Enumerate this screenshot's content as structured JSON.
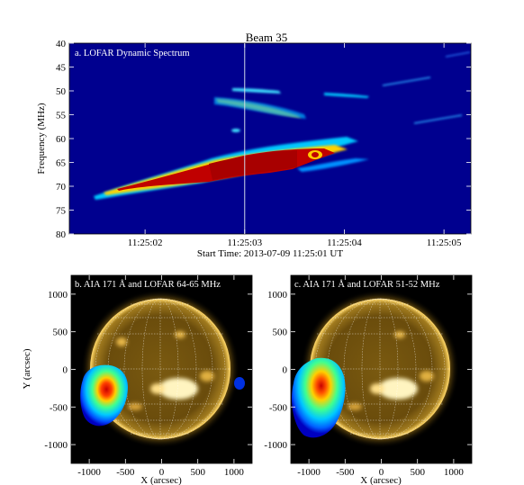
{
  "figure": {
    "title": "Beam 35"
  },
  "chart_data": [
    {
      "id": "a",
      "type": "heatmap",
      "panel_label": "a. LOFAR Dynamic Spectrum",
      "ylabel": "Frequency (MHz)",
      "xlabel": "Start Time: 2013-07-09 11:25:01 UT",
      "y_ticks": [
        "40",
        "45",
        "50",
        "55",
        "60",
        "65",
        "70",
        "75",
        "80"
      ],
      "y_tick_values": [
        40,
        45,
        50,
        55,
        60,
        65,
        70,
        75,
        80
      ],
      "ylim": [
        80,
        40
      ],
      "x_ticks": [
        "11:25:02",
        "11:25:03",
        "11:25:04",
        "11:25:05"
      ],
      "x_tick_values": [
        1.0,
        2.0,
        3.0,
        4.0
      ],
      "xlim": [
        0.24,
        4.27
      ],
      "x_units": "seconds after 11:25:01 UT",
      "marker_line_x": 2.0,
      "marker_line_color": "#cfd8e8",
      "background_color": "#00008f",
      "colormap": "jet",
      "features": [
        {
          "name": "main-burst",
          "description": "intense drifting emission",
          "x_range": [
            0.45,
            3.05
          ],
          "freq_range": [
            72,
            60
          ],
          "peak_color": "#b00000"
        },
        {
          "name": "upper-burst-1",
          "x_range": [
            1.8,
            2.45
          ],
          "freq_range": [
            53,
            49
          ]
        },
        {
          "name": "upper-burst-2",
          "x_range": [
            2.95,
            3.35
          ],
          "freq_range": [
            51,
            50
          ]
        },
        {
          "name": "faint-streak-1",
          "x_range": [
            3.45,
            3.95
          ],
          "freq_range": [
            49,
            48
          ]
        },
        {
          "name": "faint-streak-2",
          "x_range": [
            3.9,
            4.25
          ],
          "freq_range": [
            56,
            54
          ]
        },
        {
          "name": "faint-streak-3",
          "x_range": [
            4.05,
            4.27
          ],
          "freq_range": [
            44,
            42
          ]
        }
      ]
    },
    {
      "id": "b",
      "type": "heatmap",
      "panel_label": "b. AIA 171 Å and LOFAR 64-65 MHz",
      "xlabel": "X (arcsec)",
      "ylabel": "Y (arcsec)",
      "x_ticks": [
        "-1000",
        "-500",
        "0",
        "500",
        "1000"
      ],
      "x_tick_values": [
        -1000,
        -500,
        0,
        500,
        1000
      ],
      "y_ticks": [
        "-1000",
        "-500",
        "0",
        "500",
        "1000"
      ],
      "y_tick_values": [
        -1000,
        -500,
        0,
        500,
        1000
      ],
      "xlim": [
        -1250,
        1250
      ],
      "ylim": [
        -1250,
        1250
      ],
      "solar_radius_arcsec": 945,
      "grid": true,
      "radio_source": {
        "center": [
          -760,
          -330
        ],
        "extent": [
          [
            -1060,
            -720
          ],
          [
            -470,
            -40
          ]
        ]
      },
      "secondary_source": {
        "center": [
          1110,
          -230
        ]
      }
    },
    {
      "id": "c",
      "type": "heatmap",
      "panel_label": "c. AIA 171 Å and LOFAR 51-52 MHz",
      "xlabel": "X (arcsec)",
      "ylabel": "",
      "x_ticks": [
        "-1000",
        "-500",
        "0",
        "500",
        "1000"
      ],
      "x_tick_values": [
        -1000,
        -500,
        0,
        500,
        1000
      ],
      "y_ticks": [
        "-1000",
        "-500",
        "0",
        "500",
        "1000"
      ],
      "y_tick_values": [
        -1000,
        -500,
        0,
        500,
        1000
      ],
      "xlim": [
        -1250,
        1250
      ],
      "ylim": [
        -1250,
        1250
      ],
      "solar_radius_arcsec": 945,
      "grid": true,
      "radio_source": {
        "center": [
          -780,
          -380
        ],
        "extent": [
          [
            -1160,
            -930
          ],
          [
            -380,
            -30
          ]
        ]
      }
    }
  ]
}
